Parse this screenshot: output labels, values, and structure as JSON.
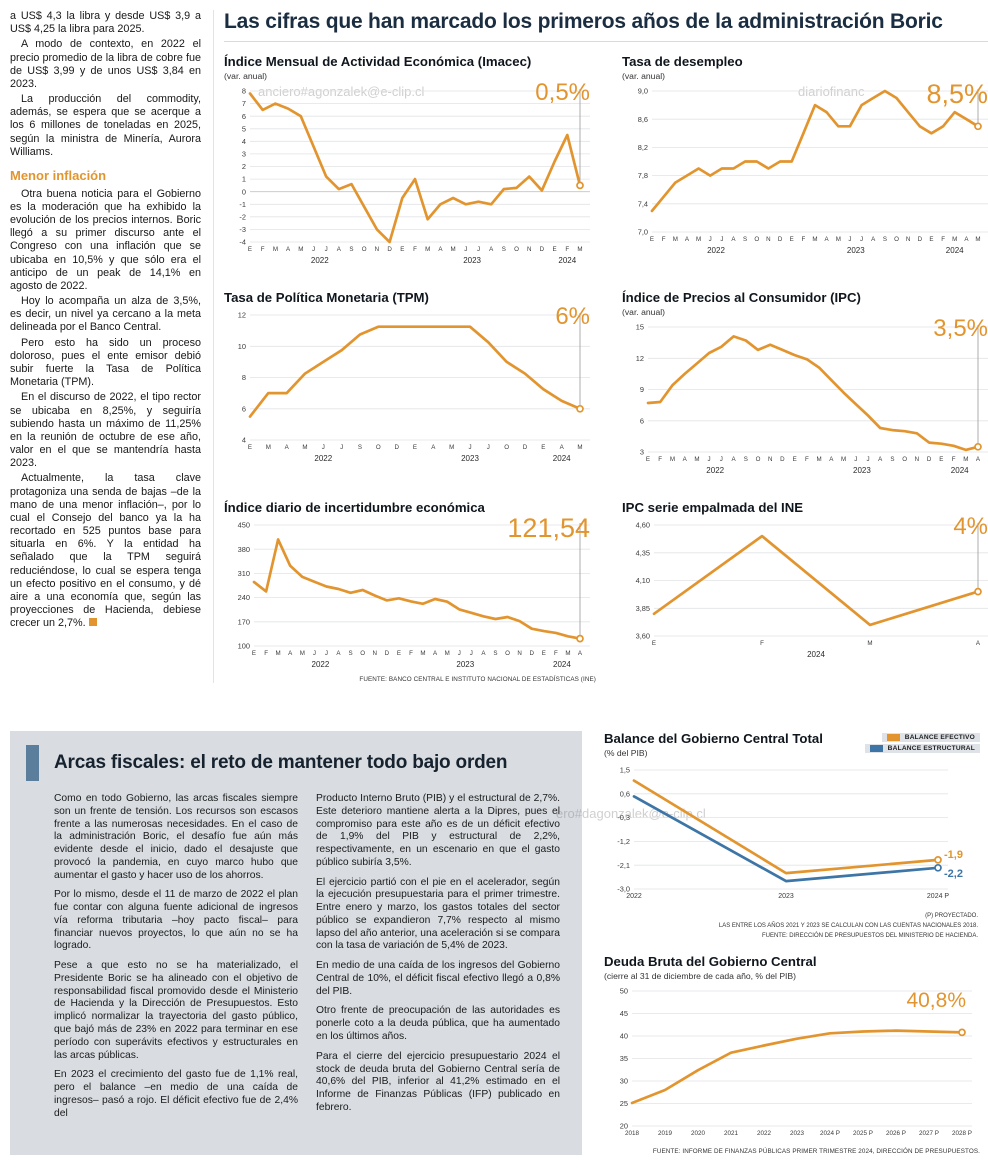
{
  "page": {
    "headline": "Las cifras que han marcado los primeros años de la administración Boric",
    "watermarks": [
      "anciero#agonzalek@e-clip.cl",
      "diariofinanc",
      "ero#dagonzalek@e-clip.cl"
    ]
  },
  "colors": {
    "orange": "#E2952F",
    "blue": "#3D76A6",
    "section_bg": "#D9DDE2",
    "accent_bar": "#5B7E9C",
    "headline": "#1B2D40"
  },
  "left_article": {
    "paragraphs": [
      "a US$ 4,3 la libra y desde US$ 3,9 a US$ 4,25 la libra para 2025.",
      "A modo de contexto, en 2022 el precio promedio de la libra de cobre fue de US$ 3,99 y de unos US$ 3,84 en 2023.",
      "La producción del commodity, además, se espera que se acerque a los 6 millones de toneladas en 2025, según la ministra de Minería, Aurora Williams."
    ],
    "subhead": "Menor inflación",
    "paragraphs2": [
      "Otra buena noticia para el Gobierno es la moderación que ha exhibido la evolución de los precios internos. Boric llegó a su primer discurso ante el Congreso con una inflación que se ubicaba en 10,5% y que sólo era el anticipo de un peak de 14,1% en agosto de 2022.",
      "Hoy lo acompaña un alza de 3,5%, es decir, un nivel ya cercano a la meta delineada por el Banco Central.",
      "Pero esto ha sido un proceso doloroso, pues el ente emisor debió subir fuerte la Tasa de Política Monetaria (TPM).",
      "En el discurso de 2022, el tipo rector se ubicaba en 8,25%, y seguiría subiendo hasta un máximo de 11,25% en la reunión de octubre de ese año, valor en el que se mantendría hasta 2023.",
      "Actualmente, la tasa clave protagoniza una senda de bajas –de la mano de una menor inflación–, por lo cual el Consejo del banco ya la ha recortado en 525 puntos base para situarla en 6%. Y la entidad ha señalado que la TPM seguirá reduciéndose, lo cual se espera tenga un efecto positivo en el consumo, y dé aire a una economía que, según las proyecciones de Hacienda, debiese crecer un 2,7%."
    ]
  },
  "fiscal_section": {
    "title": "Arcas fiscales: el reto de mantener todo bajo orden",
    "col1": [
      "Como en todo Gobierno, las arcas fiscales siempre son un frente de tensión. Los recursos son escasos frente a las numerosas necesidades. En el caso de la administración Boric, el desafío fue aún más evidente desde el inicio, dado el desajuste que provocó la pandemia, en cuyo marco hubo que aumentar el gasto y hacer uso de los ahorros.",
      "Por lo mismo, desde el 11 de marzo de 2022 el plan fue contar con alguna fuente adicional de ingresos vía reforma tributaria –hoy pacto fiscal– para financiar nuevos proyectos, lo que aún no se ha logrado.",
      "Pese a que esto no se ha materializado, el Presidente Boric se ha alineado con el objetivo de responsabilidad fiscal promovido desde el Ministerio de Hacienda y la Dirección de Presupuestos. Esto implicó normalizar la trayectoria del gasto público, que bajó más de 23% en 2022 para terminar en ese período con superávits efectivos y estructurales en las arcas públicas.",
      "En 2023 el crecimiento del gasto fue de 1,1% real, pero el balance –en medio de una caída de ingresos– pasó a rojo. El déficit efectivo fue de 2,4% del"
    ],
    "col2": [
      "Producto Interno Bruto (PIB) y el estructural de 2,7%. Este deterioro mantiene alerta a la Dipres, pues el compromiso para este año es de un déficit efectivo de 1,9% del PIB y estructural de 2,2%, respectivamente, en un escenario en que el gasto público subiría 3,5%.",
      "El ejercicio partió con el pie en el acelerador, según la ejecución presupuestaria para el primer trimestre. Entre enero y marzo, los gastos totales del sector público se expandieron 7,7% respecto al mismo lapso del año anterior, una aceleración si se compara con la tasa de variación de 5,4% de 2023.",
      "En medio de una caída de los ingresos del Gobierno Central de 10%, el déficit fiscal efectivo llegó a 0,8% del PIB.",
      "Otro frente de preocupación de las autoridades es ponerle coto a la deuda pública, que ha aumentado en los últimos años.",
      "Para el cierre del ejercicio presupuestario 2024 el stock de deuda bruta del Gobierno Central sería de 40,6% del PIB, inferior al 41,2% estimado en el Informe de Finanzas Públicas (IFP) publicado en febrero."
    ]
  },
  "chart_data": [
    {
      "type": "line",
      "title": "Índice Mensual de Actividad Económica (Imacec)",
      "subtitle": "(var. anual)",
      "callout": "0,5%",
      "ylim": [
        -4,
        8
      ],
      "yticks": [
        8,
        7,
        6,
        5,
        4,
        3,
        2,
        1,
        0,
        -1,
        -2,
        -3,
        -4
      ],
      "ytick_labels": [
        "8",
        "7",
        "6",
        "5",
        "4",
        "3",
        "2",
        "1",
        "0",
        "-1",
        "-2",
        "-3",
        "-4"
      ],
      "x_labels": [
        "E",
        "F",
        "M",
        "A",
        "M",
        "J",
        "J",
        "A",
        "S",
        "O",
        "N",
        "D",
        "E",
        "F",
        "M",
        "A",
        "M",
        "J",
        "J",
        "A",
        "S",
        "O",
        "N",
        "D",
        "E",
        "F",
        "M"
      ],
      "years": [
        {
          "label": "2022",
          "start": 0,
          "end": 11
        },
        {
          "label": "2023",
          "start": 12,
          "end": 23
        },
        {
          "label": "2024",
          "start": 24,
          "end": 26
        }
      ],
      "series": [
        {
          "name": "Imacec var. anual",
          "color": "#E2952F",
          "values": [
            7.8,
            6.5,
            7.0,
            6.6,
            6.0,
            3.6,
            1.2,
            0.2,
            0.6,
            -1.2,
            -3.0,
            -4.0,
            -0.5,
            1.0,
            -2.2,
            -1.0,
            -0.5,
            -1.0,
            -0.8,
            -1.0,
            0.2,
            0.3,
            1.2,
            0.1,
            2.4,
            4.5,
            0.5
          ]
        }
      ]
    },
    {
      "type": "line",
      "title": "Tasa de desempleo",
      "subtitle": "(var. anual)",
      "callout": "8,5%",
      "ylim": [
        7.0,
        9.0
      ],
      "yticks": [
        9.0,
        8.6,
        8.2,
        7.8,
        7.4,
        7.0
      ],
      "ytick_labels": [
        "9,0",
        "8,6",
        "8,2",
        "7,8",
        "7,4",
        "7,0"
      ],
      "x_labels": [
        "E",
        "F",
        "M",
        "A",
        "M",
        "J",
        "J",
        "A",
        "S",
        "O",
        "N",
        "D",
        "E",
        "F",
        "M",
        "A",
        "M",
        "J",
        "J",
        "A",
        "S",
        "O",
        "N",
        "D",
        "E",
        "F",
        "M",
        "A",
        "M"
      ],
      "years": [
        {
          "label": "2022",
          "start": 0,
          "end": 11
        },
        {
          "label": "2023",
          "start": 12,
          "end": 23
        },
        {
          "label": "2024",
          "start": 24,
          "end": 28
        }
      ],
      "series": [
        {
          "name": "Tasa de desempleo",
          "color": "#E2952F",
          "values": [
            7.3,
            7.5,
            7.7,
            7.8,
            7.9,
            7.8,
            7.9,
            7.9,
            8.0,
            8.0,
            7.9,
            8.0,
            8.0,
            8.4,
            8.8,
            8.7,
            8.5,
            8.5,
            8.8,
            8.9,
            9.0,
            8.9,
            8.7,
            8.5,
            8.4,
            8.5,
            8.7,
            8.6,
            8.5
          ]
        }
      ]
    },
    {
      "type": "line",
      "title": "Tasa de Política Monetaria (TPM)",
      "callout": "6%",
      "ylim": [
        4,
        12
      ],
      "yticks": [
        12,
        10,
        8,
        6,
        4
      ],
      "ytick_labels": [
        "12",
        "10",
        "8",
        "6",
        "4"
      ],
      "x_labels": [
        "E",
        "M",
        "A",
        "M",
        "J",
        "J",
        "S",
        "O",
        "D",
        "E",
        "A",
        "M",
        "J",
        "J",
        "O",
        "D",
        "E",
        "A",
        "M"
      ],
      "years": [
        {
          "label": "2022",
          "start": 0,
          "end": 8
        },
        {
          "label": "2023",
          "start": 9,
          "end": 15
        },
        {
          "label": "2024",
          "start": 16,
          "end": 18
        }
      ],
      "series": [
        {
          "name": "TPM",
          "color": "#E2952F",
          "values": [
            5.5,
            7.0,
            7.0,
            8.25,
            9.0,
            9.75,
            10.75,
            11.25,
            11.25,
            11.25,
            11.25,
            11.25,
            11.25,
            10.25,
            9.0,
            8.25,
            7.25,
            6.5,
            6.0
          ]
        }
      ]
    },
    {
      "type": "line",
      "title": "Índice de Precios al Consumidor (IPC)",
      "subtitle": "(var. anual)",
      "callout": "3,5%",
      "ylim": [
        3,
        15
      ],
      "yticks": [
        15,
        12,
        9,
        6,
        3
      ],
      "ytick_labels": [
        "15",
        "12",
        "9",
        "6",
        "3"
      ],
      "x_labels": [
        "E",
        "F",
        "M",
        "A",
        "M",
        "J",
        "J",
        "A",
        "S",
        "O",
        "N",
        "D",
        "E",
        "F",
        "M",
        "A",
        "M",
        "J",
        "J",
        "A",
        "S",
        "O",
        "N",
        "D",
        "E",
        "F",
        "M",
        "A"
      ],
      "years": [
        {
          "label": "2022",
          "start": 0,
          "end": 11
        },
        {
          "label": "2023",
          "start": 12,
          "end": 23
        },
        {
          "label": "2024",
          "start": 24,
          "end": 27
        }
      ],
      "series": [
        {
          "name": "IPC var. anual",
          "color": "#E2952F",
          "values": [
            7.7,
            7.8,
            9.4,
            10.5,
            11.5,
            12.5,
            13.1,
            14.1,
            13.7,
            12.8,
            13.3,
            12.8,
            12.3,
            11.9,
            11.1,
            9.9,
            8.7,
            7.6,
            6.5,
            5.3,
            5.1,
            5.0,
            4.8,
            3.9,
            3.8,
            3.6,
            3.2,
            3.5
          ]
        }
      ]
    },
    {
      "type": "line",
      "title": "Índice diario de incertidumbre económica",
      "callout": "121,54",
      "ylim": [
        100,
        450
      ],
      "yticks": [
        450,
        380,
        310,
        240,
        170,
        100
      ],
      "ytick_labels": [
        "450",
        "380",
        "310",
        "240",
        "170",
        "100"
      ],
      "x_labels": [
        "E",
        "F",
        "M",
        "A",
        "M",
        "J",
        "J",
        "A",
        "S",
        "O",
        "N",
        "D",
        "E",
        "F",
        "M",
        "A",
        "M",
        "J",
        "J",
        "A",
        "S",
        "O",
        "N",
        "D",
        "E",
        "F",
        "M",
        "A"
      ],
      "years": [
        {
          "label": "2022",
          "start": 0,
          "end": 11
        },
        {
          "label": "2023",
          "start": 12,
          "end": 23
        },
        {
          "label": "2024",
          "start": 24,
          "end": 27
        }
      ],
      "series": [
        {
          "name": "Incertidumbre económica",
          "color": "#E2952F",
          "values": [
            285,
            258,
            408,
            332,
            300,
            286,
            272,
            265,
            254,
            262,
            246,
            232,
            238,
            229,
            222,
            236,
            228,
            206,
            196,
            186,
            178,
            184,
            172,
            150,
            143,
            138,
            128,
            121.54
          ]
        }
      ],
      "source": "FUENTE: BANCO CENTRAL E INSTITUTO NACIONAL DE ESTADÍSTICAS (INE)"
    },
    {
      "type": "line",
      "title": "IPC serie empalmada del INE",
      "callout": "4%",
      "ylim": [
        3.6,
        4.6
      ],
      "yticks": [
        4.6,
        4.35,
        4.1,
        3.85,
        3.6
      ],
      "ytick_labels": [
        "4,60",
        "4,35",
        "4,10",
        "3,85",
        "3,60"
      ],
      "x_labels": [
        "E",
        "F",
        "M",
        "A"
      ],
      "years": [
        {
          "label": "2024",
          "start": 0,
          "end": 3
        }
      ],
      "series": [
        {
          "name": "IPC serie empalmada",
          "color": "#E2952F",
          "values": [
            3.8,
            4.5,
            3.7,
            4.0
          ]
        }
      ]
    },
    {
      "type": "line",
      "title": "Balance del Gobierno Central Total",
      "subtitle": "(% del PIB)",
      "legend": [
        {
          "label": "BALANCE EFECTIVO",
          "color": "#E2952F"
        },
        {
          "label": "BALANCE ESTRUCTURAL",
          "color": "#3D76A6"
        }
      ],
      "ylim": [
        -3.0,
        1.5
      ],
      "yticks": [
        1.5,
        0.6,
        -0.3,
        -1.2,
        -2.1,
        -3.0
      ],
      "ytick_labels": [
        "1,5",
        "0,6",
        "-0,3",
        "-1,2",
        "-2,1",
        "-3,0"
      ],
      "x_labels": [
        "2022",
        "2023",
        "2024 P"
      ],
      "series": [
        {
          "name": "Balance efectivo",
          "color": "#E2952F",
          "values": [
            1.1,
            -2.4,
            -1.9
          ],
          "end_label": "-1,9"
        },
        {
          "name": "Balance estructural",
          "color": "#3D76A6",
          "values": [
            0.5,
            -2.7,
            -2.2
          ],
          "end_label": "-2,2"
        }
      ],
      "footnotes": [
        "(P) PROYECTADO.",
        "LAS ENTRE LOS AÑOS 2021 Y 2023 SE CALCULAN CON LAS CUENTAS NACIONALES 2018.",
        "FUENTE: DIRECCIÓN DE PRESUPUESTOS DEL MINISTERIO DE HACIENDA."
      ]
    },
    {
      "type": "line",
      "title": "Deuda Bruta del Gobierno Central",
      "subtitle": "(cierre al 31 de diciembre de cada año, % del PIB)",
      "callout": "40,8%",
      "ylim": [
        20,
        50
      ],
      "yticks": [
        50,
        45,
        40,
        35,
        30,
        25,
        20
      ],
      "ytick_labels": [
        "50",
        "45",
        "40",
        "35",
        "30",
        "25",
        "20"
      ],
      "x_labels": [
        "2018",
        "2019",
        "2020",
        "2021",
        "2022",
        "2023",
        "2024 P",
        "2025 P",
        "2026 P",
        "2027 P",
        "2028 P"
      ],
      "series": [
        {
          "name": "Deuda bruta",
          "color": "#E2952F",
          "values": [
            25.1,
            28.0,
            32.4,
            36.3,
            37.9,
            39.4,
            40.6,
            41.0,
            41.2,
            41.0,
            40.8
          ]
        }
      ],
      "source": "FUENTE: INFORME DE FINANZAS PÚBLICAS PRIMER TRIMESTRE 2024, DIRECCIÓN DE PRESUPUESTOS."
    }
  ]
}
